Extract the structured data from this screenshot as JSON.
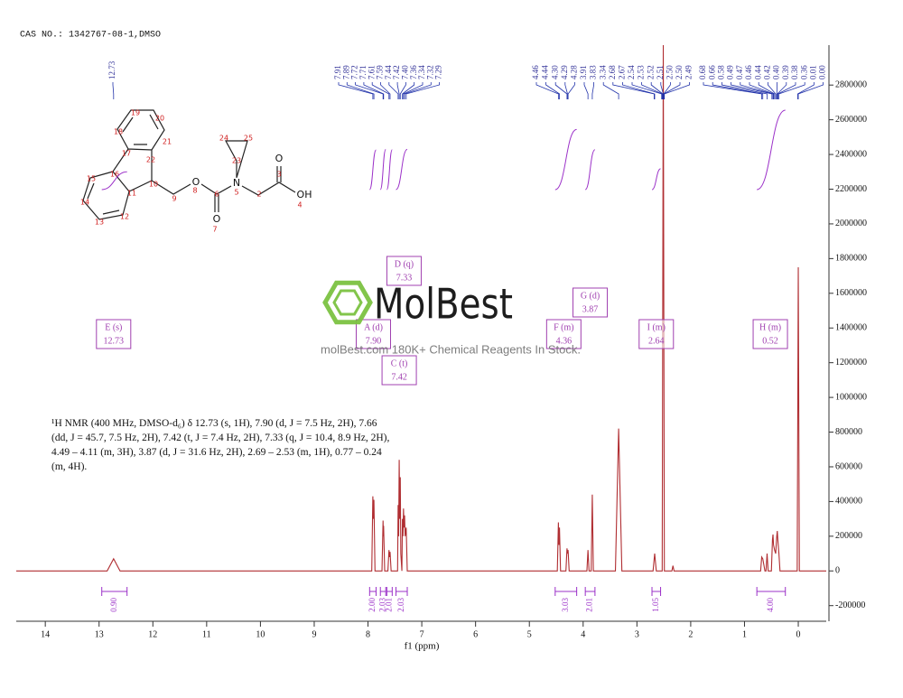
{
  "chart_data": {
    "type": "line",
    "title": "CAS NO.: 1342767-08-1,DMSO",
    "x_label": "f1 (ppm)",
    "x": [
      14.54,
      12.85,
      12.73,
      12.61,
      7.93,
      7.91,
      7.9,
      7.89,
      7.87,
      7.74,
      7.72,
      7.715,
      7.71,
      7.69,
      7.63,
      7.61,
      7.6,
      7.59,
      7.57,
      7.45,
      7.44,
      7.43,
      7.42,
      7.41,
      7.4,
      7.39,
      7.37,
      7.36,
      7.35,
      7.34,
      7.33,
      7.32,
      7.31,
      7.29,
      7.27,
      4.48,
      4.46,
      4.45,
      4.44,
      4.42,
      4.32,
      4.3,
      4.29,
      4.28,
      4.26,
      3.93,
      3.91,
      3.89,
      3.85,
      3.83,
      3.81,
      3.4,
      3.34,
      3.28,
      2.7,
      2.67,
      2.64,
      2.53,
      2.51,
      2.49,
      2.35,
      2.33,
      2.31,
      0.7,
      0.68,
      0.66,
      0.62,
      0.6,
      0.58,
      0.56,
      0.5,
      0.48,
      0.47,
      0.46,
      0.44,
      0.42,
      0.4,
      0.39,
      0.38,
      0.36,
      0.34,
      0.02,
      0,
      -0.02,
      -0.52
    ],
    "values": [
      0,
      0,
      70000,
      0,
      0,
      430000,
      300000,
      410000,
      0,
      0,
      290000,
      200000,
      260000,
      0,
      0,
      120000,
      80000,
      110000,
      0,
      0,
      380000,
      200000,
      640000,
      300000,
      540000,
      100000,
      0,
      300000,
      200000,
      360000,
      250000,
      320000,
      200000,
      250000,
      0,
      0,
      280000,
      150000,
      250000,
      0,
      0,
      130000,
      100000,
      120000,
      0,
      0,
      120000,
      0,
      0,
      440000,
      0,
      0,
      820000,
      0,
      0,
      100000,
      0,
      0,
      3030000,
      0,
      0,
      30000,
      0,
      0,
      80000,
      70000,
      0,
      0,
      100000,
      0,
      0,
      180000,
      210000,
      150000,
      120000,
      100000,
      200000,
      230000,
      180000,
      100000,
      0,
      0,
      1750000,
      0,
      0
    ],
    "color": "#b02e32",
    "xlim": [
      14.54,
      -0.52
    ],
    "xticks": [
      14,
      13,
      12,
      11,
      10,
      9,
      8,
      7,
      6,
      5,
      4,
      3,
      2,
      1,
      0
    ],
    "ylim": [
      -290000,
      3030000
    ],
    "yticks": [
      -200000,
      0,
      200000,
      400000,
      600000,
      800000,
      1000000,
      1200000,
      1400000,
      1600000,
      1800000,
      2000000,
      2200000,
      2400000,
      2600000,
      2800000
    ],
    "peak_label_groups": [
      [
        12.73
      ],
      [
        7.91,
        7.89,
        7.72,
        7.71,
        7.61,
        7.59,
        7.44,
        7.42,
        {
          "value": 7.4,
          "label": "7.40"
        },
        7.36,
        7.34,
        7.32,
        7.29
      ],
      [
        4.46,
        4.44,
        {
          "value": 4.3,
          "label": "4.30"
        },
        4.29,
        4.28,
        3.91,
        3.83,
        3.34,
        2.68,
        2.67,
        2.54,
        2.53,
        2.52,
        2.51,
        {
          "value": 2.5,
          "label": "2.50"
        },
        {
          "value": 2.5,
          "label": "2.50"
        },
        2.49
      ],
      [
        0.68,
        0.66,
        0.58,
        0.49,
        0.47,
        0.46,
        0.44,
        0.42,
        {
          "value": 0.4,
          "label": "0.40"
        },
        0.39,
        0.38,
        0.36,
        0.01,
        {
          "value": 0,
          "label": "0.00"
        }
      ]
    ],
    "integrals": [
      {
        "range": [
          12.95,
          12.48
        ],
        "value": 0.9,
        "label": "0.90"
      },
      {
        "range": [
          7.97,
          7.85
        ],
        "value": 2,
        "label": "2.00"
      },
      {
        "range": [
          7.77,
          7.67
        ],
        "value": 2.03
      },
      {
        "range": [
          7.65,
          7.55
        ],
        "value": 2.01
      },
      {
        "range": [
          7.48,
          7.27
        ],
        "value": 2.03
      },
      {
        "range": [
          4.52,
          4.12
        ],
        "value": 3.03
      },
      {
        "range": [
          3.96,
          3.78
        ],
        "value": 2.01
      },
      {
        "range": [
          2.72,
          2.56
        ],
        "value": 1.05
      },
      {
        "range": [
          0.77,
          0.24
        ],
        "value": 4,
        "label": "4.00"
      }
    ],
    "multiplets": [
      {
        "label": "E (s)",
        "shift": 12.73
      },
      {
        "label": "A (d)",
        "shift": {
          "value": 7.9,
          "label": "7.90"
        }
      },
      {
        "label": "C (t)",
        "shift": 7.42
      },
      {
        "label": "D (q)",
        "shift": 7.33
      },
      {
        "label": "F (m)",
        "shift": 4.36
      },
      {
        "label": "G (d)",
        "shift": 3.87
      },
      {
        "label": "I (m)",
        "shift": 2.64
      },
      {
        "label": "H (m)",
        "shift": 0.52
      }
    ]
  },
  "description": "¹H NMR (400 MHz, DMSO-d₆) δ 12.73 (s, 1H), 7.90 (d, J = 7.5 Hz, 2H), 7.66 (dd, J = 45.7, 7.5 Hz, 2H), 7.42 (t, J = 7.4 Hz, 2H), 7.33 (q, J = 10.4, 8.9 Hz, 2H), 4.49 – 4.11 (m, 3H), 3.87 (d, J = 31.6 Hz, 2H), 2.69 – 2.53 (m, 1H), 0.77 – 0.24 (m, 4H).",
  "structure": {
    "atom_numbers": [
      "19",
      "20",
      "18",
      "21",
      "17",
      "22",
      "16",
      "15",
      "10",
      "11",
      "14",
      "9",
      "12",
      "13",
      "8",
      "6",
      "7",
      "5",
      "24",
      "25",
      "23",
      "2",
      "3",
      "4"
    ],
    "elements": [
      "O",
      "O",
      "N",
      "O",
      "OH"
    ]
  },
  "watermark": {
    "brand": "MolBest",
    "tagline": "molBest.com 180K+ Chemical Reagents In Stock."
  }
}
